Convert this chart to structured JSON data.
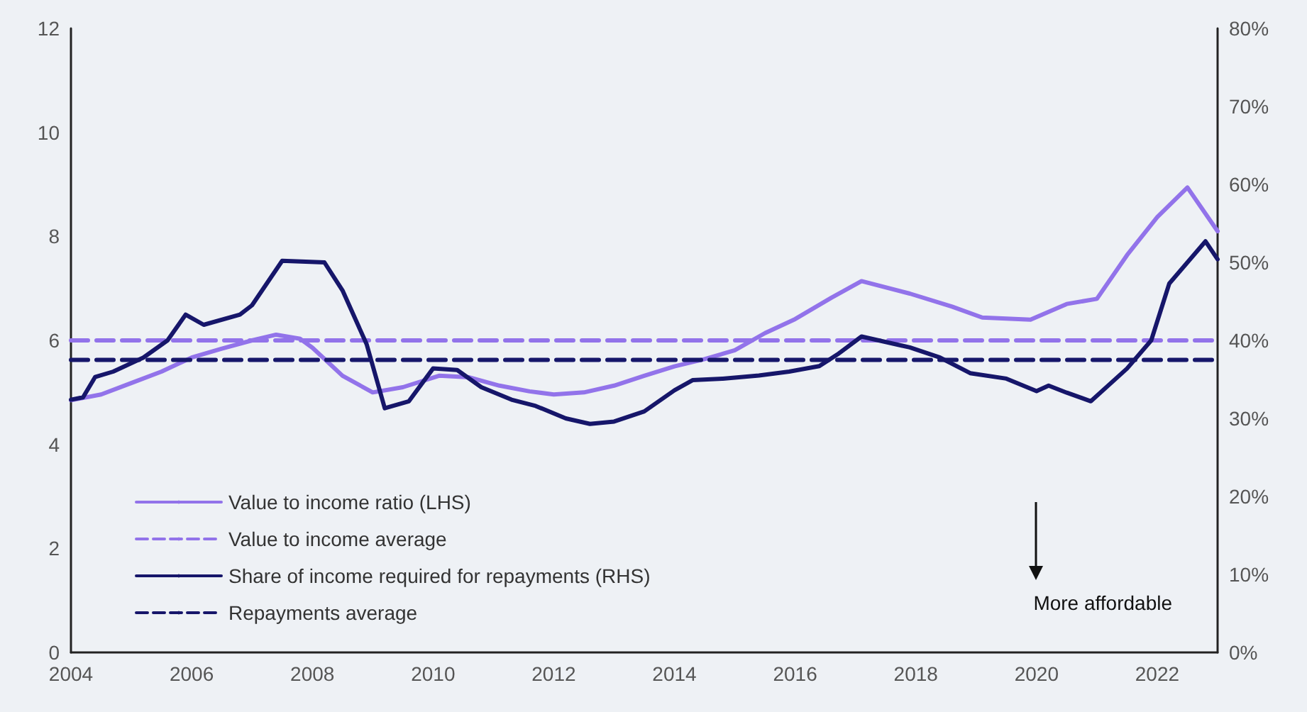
{
  "chart_data": {
    "type": "line",
    "x": [
      2004.0,
      2004.5,
      2005.0,
      2005.5,
      2006.0,
      2006.5,
      2007.0,
      2007.4,
      2007.8,
      2008.0,
      2008.5,
      2009.0,
      2009.5,
      2010.1,
      2010.6,
      2011.1,
      2011.6,
      2012.0,
      2012.5,
      2013.0,
      2013.5,
      2014.0,
      2014.5,
      2015.0,
      2015.5,
      2016.0,
      2016.6,
      2017.1,
      2017.9,
      2018.6,
      2019.1,
      2019.9,
      2020.5,
      2021.0,
      2021.5,
      2022.0,
      2022.5,
      2023.0
    ],
    "series": [
      {
        "name": "Value to income ratio (LHS)",
        "color": "#9273ea",
        "line_style": "solid",
        "values": [
          4.85,
          4.96,
          5.18,
          5.4,
          5.67,
          5.84,
          6.0,
          6.11,
          6.03,
          5.86,
          5.32,
          5.0,
          5.1,
          5.32,
          5.29,
          5.13,
          5.02,
          4.96,
          5.0,
          5.13,
          5.32,
          5.5,
          5.64,
          5.81,
          6.14,
          6.41,
          6.82,
          7.14,
          6.9,
          6.65,
          6.44,
          6.4,
          6.7,
          6.8,
          7.64,
          8.37,
          8.94,
          8.1
        ]
      },
      {
        "name": "Value to income average",
        "color": "#9273ea",
        "line_style": "dashed",
        "x": [
          2004,
          2023
        ],
        "values": [
          6.0,
          6.0
        ]
      },
      {
        "name": "Share of income required for repayments (RHS)",
        "color": "#16166a",
        "line_style": "solid",
        "axis": "y2",
        "x": [
          2004.0,
          2004.2,
          2004.4,
          2004.7,
          2005.2,
          2005.6,
          2005.9,
          2006.2,
          2006.8,
          2007.0,
          2007.5,
          2008.2,
          2008.5,
          2008.9,
          2009.2,
          2009.6,
          2010.0,
          2010.4,
          2010.8,
          2011.3,
          2011.7,
          2012.2,
          2012.6,
          2013.0,
          2013.5,
          2014.0,
          2014.3,
          2014.8,
          2015.4,
          2015.9,
          2016.4,
          2016.7,
          2017.1,
          2017.9,
          2018.4,
          2018.9,
          2019.5,
          2020.0,
          2020.2,
          2020.5,
          2020.9,
          2021.5,
          2021.9,
          2022.2,
          2022.8,
          2023.0
        ],
        "values": [
          32.4,
          32.7,
          35.3,
          36.0,
          37.8,
          40.0,
          43.3,
          42.0,
          43.3,
          44.5,
          50.2,
          50.0,
          46.4,
          39.5,
          31.3,
          32.2,
          36.4,
          36.2,
          34.0,
          32.4,
          31.6,
          30.0,
          29.3,
          29.6,
          30.9,
          33.6,
          34.9,
          35.1,
          35.5,
          36.0,
          36.7,
          38.2,
          40.5,
          39.1,
          37.8,
          35.8,
          35.1,
          33.5,
          34.2,
          33.3,
          32.2,
          36.4,
          40.0,
          47.3,
          52.7,
          50.4
        ]
      },
      {
        "name": "Repayments average",
        "color": "#16166a",
        "line_style": "dashed",
        "axis": "y2",
        "x": [
          2004,
          2023
        ],
        "values": [
          37.5,
          37.5
        ]
      }
    ],
    "xlim": [
      2004,
      2023
    ],
    "xticks": [
      2004,
      2006,
      2008,
      2010,
      2012,
      2014,
      2016,
      2018,
      2020,
      2022
    ],
    "ylim": [
      0,
      12
    ],
    "yticks": [
      0,
      2,
      4,
      6,
      8,
      10,
      12
    ],
    "y2lim": [
      0,
      80
    ],
    "y2ticks": [
      {
        "value": 0,
        "label": "0%"
      },
      {
        "value": 10,
        "label": "10%"
      },
      {
        "value": 20,
        "label": "20%"
      },
      {
        "value": 30,
        "label": "30%"
      },
      {
        "value": 40,
        "label": "40%"
      },
      {
        "value": 50,
        "label": "50%"
      },
      {
        "value": 60,
        "label": "60%"
      },
      {
        "value": 70,
        "label": "70%"
      },
      {
        "value": 80,
        "label": "80%"
      }
    ],
    "annotations": [
      "More affordable"
    ],
    "grid": false,
    "legend": "bottom left",
    "marker": "none"
  }
}
